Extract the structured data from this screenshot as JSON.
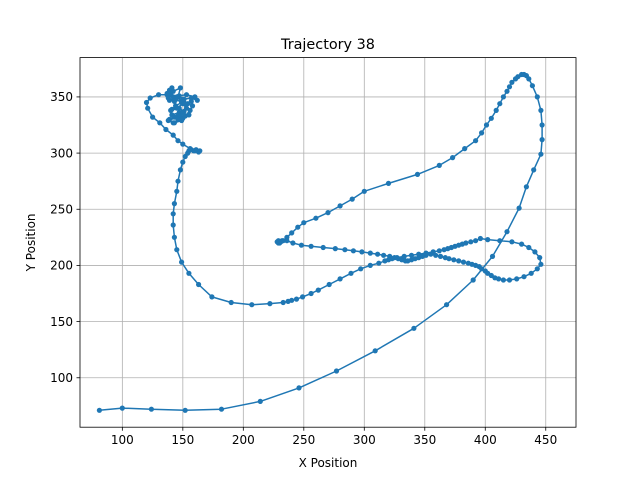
{
  "chart_data": {
    "type": "line",
    "title": "Trajectory 38",
    "xlabel": "X Position",
    "ylabel": "Y Position",
    "xlim": [
      65,
      475
    ],
    "ylim": [
      56,
      385
    ],
    "xticks": [
      100,
      150,
      200,
      250,
      300,
      350,
      400,
      450
    ],
    "yticks": [
      100,
      150,
      200,
      250,
      300,
      350
    ],
    "grid": true,
    "marker": "circle",
    "color": "#1f77b4",
    "series": [
      {
        "x": [
          81,
          100,
          124,
          152,
          182,
          214,
          246,
          277,
          309,
          341,
          368,
          390,
          406,
          418,
          428,
          434,
          440,
          446,
          447,
          447,
          446,
          443,
          439,
          436,
          434,
          432,
          430,
          427,
          425,
          422,
          420,
          418,
          415,
          412,
          409,
          405,
          401,
          397,
          392,
          383,
          373,
          362,
          344,
          320,
          300,
          290,
          280,
          270,
          260,
          250,
          245,
          240,
          236,
          233,
          231,
          230,
          229,
          228,
          229,
          232,
          236,
          241,
          248,
          256,
          266,
          276,
          284,
          291,
          298,
          305,
          311,
          316,
          321,
          325,
          328,
          331,
          334,
          336,
          339,
          342,
          345,
          348,
          351,
          355,
          359,
          363,
          367,
          370,
          374,
          378,
          382,
          386,
          389,
          392,
          395,
          397,
          400,
          402,
          405,
          408,
          411,
          415,
          420,
          426,
          432,
          438,
          443,
          446,
          445,
          441,
          436,
          430,
          422,
          412,
          402,
          396,
          392,
          388,
          384,
          381,
          378,
          375,
          372,
          369,
          366,
          362,
          357,
          351,
          345,
          339,
          333,
          327,
          323,
          320,
          317,
          312,
          305,
          297,
          289,
          280,
          271,
          262,
          256,
          249,
          244,
          240,
          237,
          233,
          222,
          207,
          190,
          174,
          163,
          155,
          149,
          145,
          143,
          142,
          142,
          143,
          145,
          146,
          148,
          150,
          152,
          154,
          155,
          157,
          159,
          161,
          164,
          163,
          160,
          156,
          150,
          146,
          142,
          136,
          131,
          125,
          121,
          120,
          123,
          130,
          138,
          141,
          139,
          137,
          142,
          148,
          146,
          139,
          137,
          142,
          150,
          145,
          141,
          144,
          149,
          153,
          147,
          141,
          140,
          147,
          151,
          146,
          139,
          143,
          149,
          148,
          138,
          142,
          150,
          155,
          149,
          143,
          146,
          152,
          156,
          158,
          154,
          150,
          147,
          153,
          160,
          157,
          152,
          149,
          145,
          140,
          138,
          143,
          151,
          157,
          162
        ],
        "y": [
          71,
          73,
          72,
          71,
          72,
          79,
          91,
          106,
          124,
          144,
          165,
          187,
          208,
          230,
          251,
          270,
          285,
          299,
          312,
          325,
          338,
          350,
          360,
          366,
          369,
          370,
          370,
          368,
          366,
          363,
          359,
          355,
          350,
          344,
          338,
          331,
          325,
          318,
          311,
          304,
          296,
          289,
          281,
          273,
          266,
          259,
          253,
          247,
          242,
          238,
          234,
          229,
          225,
          222,
          221,
          220,
          220,
          221,
          222,
          222,
          222,
          220,
          218,
          217,
          216,
          215,
          214,
          213,
          212,
          211,
          210,
          209,
          208,
          207,
          206,
          205,
          204,
          204,
          205,
          206,
          207,
          208,
          209,
          210,
          209,
          208,
          207,
          206,
          205,
          204,
          203,
          202,
          201,
          200,
          199,
          197,
          195,
          193,
          191,
          189,
          188,
          187,
          187,
          188,
          190,
          193,
          197,
          201,
          207,
          212,
          216,
          219,
          221,
          222,
          223,
          224,
          222,
          221,
          220,
          219,
          218,
          217,
          216,
          215,
          214,
          213,
          212,
          211,
          210,
          209,
          208,
          207,
          206,
          205,
          204,
          202,
          200,
          197,
          193,
          188,
          183,
          178,
          175,
          172,
          170,
          169,
          168,
          167,
          166,
          165,
          167,
          172,
          183,
          193,
          203,
          214,
          225,
          236,
          246,
          255,
          266,
          275,
          285,
          292,
          297,
          300,
          302,
          303,
          302,
          303,
          302,
          301,
          302,
          304,
          308,
          311,
          316,
          321,
          327,
          332,
          340,
          345,
          349,
          352,
          352,
          358,
          356,
          352,
          355,
          358,
          350,
          347,
          353,
          350,
          344,
          340,
          339,
          342,
          345,
          340,
          336,
          334,
          338,
          340,
          337,
          333,
          330,
          332,
          336,
          333,
          329,
          327,
          331,
          334,
          329,
          327,
          330,
          333,
          338,
          342,
          344,
          348,
          351,
          352,
          350,
          346,
          344,
          347,
          350,
          352,
          349,
          346,
          348,
          349,
          347
        ]
      }
    ]
  }
}
